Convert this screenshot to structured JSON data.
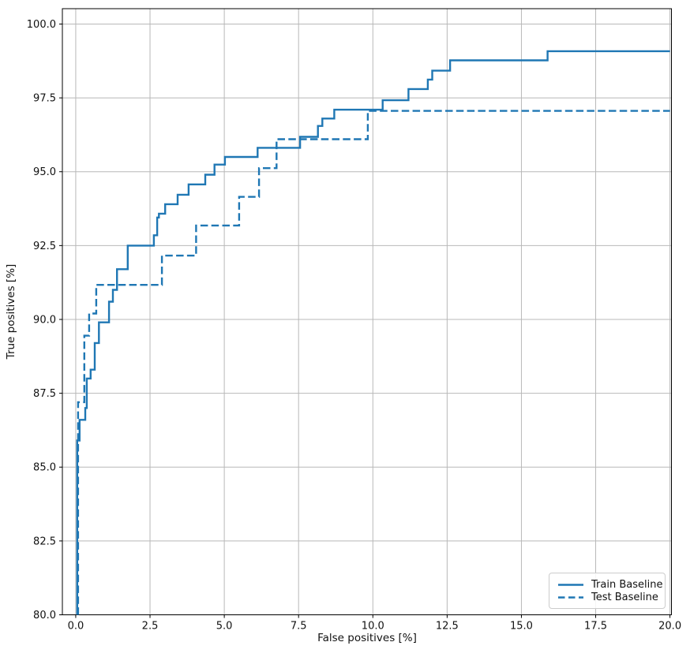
{
  "chart_data": {
    "type": "line",
    "subtype": "roc-step-curves",
    "title": "",
    "xlabel": "False positives [%]",
    "ylabel": "True positives [%]",
    "xlim": [
      -0.45,
      20.05
    ],
    "ylim": [
      80,
      100.52
    ],
    "grid": true,
    "legend_position": "lower right",
    "axis_color": "#000000",
    "grid_color": "#b8b8b8",
    "xticks": [
      {
        "value": 0,
        "label": "0.0"
      },
      {
        "value": 2.5,
        "label": "2.5"
      },
      {
        "value": 5,
        "label": "5.0"
      },
      {
        "value": 7.5,
        "label": "7.5"
      },
      {
        "value": 10,
        "label": "10.0"
      },
      {
        "value": 12.5,
        "label": "12.5"
      },
      {
        "value": 15,
        "label": "15.0"
      },
      {
        "value": 17.5,
        "label": "17.5"
      },
      {
        "value": 20,
        "label": "20.0"
      }
    ],
    "yticks": [
      {
        "value": 80,
        "label": "80.0"
      },
      {
        "value": 82.5,
        "label": "82.5"
      },
      {
        "value": 85,
        "label": "85.0"
      },
      {
        "value": 87.5,
        "label": "87.5"
      },
      {
        "value": 90,
        "label": "90.0"
      },
      {
        "value": 92.5,
        "label": "92.5"
      },
      {
        "value": 95,
        "label": "95.0"
      },
      {
        "value": 97.5,
        "label": "97.5"
      },
      {
        "value": 100,
        "label": "100.0"
      }
    ],
    "series": [
      {
        "name": "Train Baseline",
        "line_style": "solid",
        "color": "#1f77b4",
        "points": [
          [
            0.05,
            80
          ],
          [
            0.05,
            85.9
          ],
          [
            0.13,
            85.9
          ],
          [
            0.13,
            86.6
          ],
          [
            0.32,
            86.6
          ],
          [
            0.32,
            87.0
          ],
          [
            0.37,
            87.0
          ],
          [
            0.37,
            88.0
          ],
          [
            0.5,
            88.0
          ],
          [
            0.5,
            88.3
          ],
          [
            0.64,
            88.3
          ],
          [
            0.64,
            89.2
          ],
          [
            0.78,
            89.2
          ],
          [
            0.78,
            89.9
          ],
          [
            1.12,
            89.9
          ],
          [
            1.12,
            90.6
          ],
          [
            1.25,
            90.6
          ],
          [
            1.25,
            91.0
          ],
          [
            1.39,
            91.0
          ],
          [
            1.39,
            91.7
          ],
          [
            1.75,
            91.7
          ],
          [
            1.75,
            92.5
          ],
          [
            2.63,
            92.5
          ],
          [
            2.63,
            92.85
          ],
          [
            2.74,
            92.85
          ],
          [
            2.74,
            93.45
          ],
          [
            2.8,
            93.45
          ],
          [
            2.8,
            93.58
          ],
          [
            3.01,
            93.58
          ],
          [
            3.01,
            93.9
          ],
          [
            3.43,
            93.9
          ],
          [
            3.43,
            94.22
          ],
          [
            3.8,
            94.22
          ],
          [
            3.8,
            94.57
          ],
          [
            4.36,
            94.57
          ],
          [
            4.36,
            94.9
          ],
          [
            4.67,
            94.9
          ],
          [
            4.67,
            95.24
          ],
          [
            5.02,
            95.24
          ],
          [
            5.02,
            95.5
          ],
          [
            6.12,
            95.5
          ],
          [
            6.12,
            95.81
          ],
          [
            7.55,
            95.81
          ],
          [
            7.55,
            96.18
          ],
          [
            8.15,
            96.18
          ],
          [
            8.15,
            96.55
          ],
          [
            8.3,
            96.55
          ],
          [
            8.3,
            96.8
          ],
          [
            8.7,
            96.8
          ],
          [
            8.7,
            97.1
          ],
          [
            10.33,
            97.1
          ],
          [
            10.33,
            97.42
          ],
          [
            11.2,
            97.42
          ],
          [
            11.2,
            97.8
          ],
          [
            11.85,
            97.8
          ],
          [
            11.85,
            98.12
          ],
          [
            12.0,
            98.12
          ],
          [
            12.0,
            98.42
          ],
          [
            12.6,
            98.42
          ],
          [
            12.6,
            98.77
          ],
          [
            15.88,
            98.77
          ],
          [
            15.88,
            99.08
          ],
          [
            20.0,
            99.08
          ]
        ]
      },
      {
        "name": "Test Baseline",
        "line_style": "dashed",
        "color": "#1f77b4",
        "points": [
          [
            0.08,
            80
          ],
          [
            0.08,
            87.2
          ],
          [
            0.29,
            87.2
          ],
          [
            0.29,
            89.45
          ],
          [
            0.45,
            89.45
          ],
          [
            0.45,
            90.2
          ],
          [
            0.69,
            90.2
          ],
          [
            0.69,
            91.17
          ],
          [
            2.9,
            91.17
          ],
          [
            2.9,
            92.16
          ],
          [
            4.05,
            92.16
          ],
          [
            4.05,
            93.18
          ],
          [
            5.5,
            93.18
          ],
          [
            5.5,
            94.15
          ],
          [
            6.17,
            94.15
          ],
          [
            6.17,
            95.12
          ],
          [
            6.76,
            95.12
          ],
          [
            6.76,
            96.1
          ],
          [
            9.83,
            96.1
          ],
          [
            9.83,
            97.06
          ],
          [
            20.0,
            97.06
          ]
        ]
      }
    ]
  }
}
